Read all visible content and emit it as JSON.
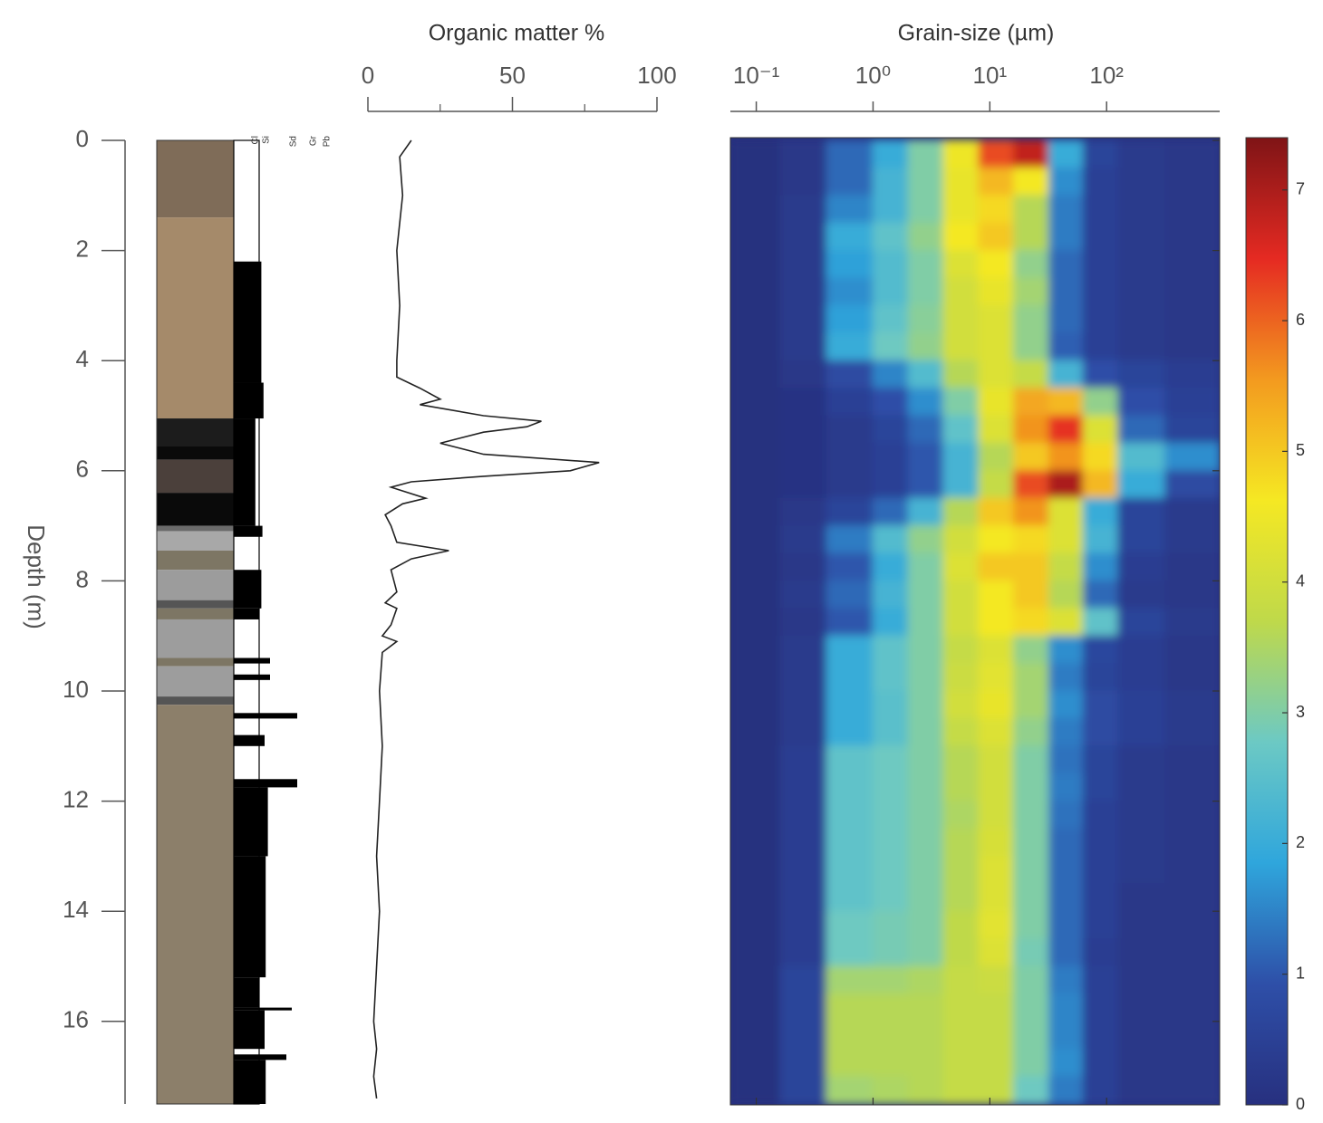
{
  "chart_data": [
    {
      "type": "lithology",
      "ylabel": "Depth (m)",
      "ylim": [
        0,
        17.5
      ],
      "yticks": [
        0,
        2,
        4,
        6,
        8,
        10,
        12,
        14,
        16
      ],
      "units": [
        {
          "top": 0,
          "bottom": 1.4,
          "color": "#7f6c58"
        },
        {
          "top": 1.4,
          "bottom": 5.05,
          "color": "#a58a6a"
        },
        {
          "top": 5.05,
          "bottom": 5.55,
          "color": "#1c1c1c"
        },
        {
          "top": 5.55,
          "bottom": 5.8,
          "color": "#0a0a0a"
        },
        {
          "top": 5.8,
          "bottom": 6.4,
          "color": "#4b403b"
        },
        {
          "top": 6.4,
          "bottom": 7.0,
          "color": "#0a0a0a"
        },
        {
          "top": 7.0,
          "bottom": 7.1,
          "color": "#6b6b6b"
        },
        {
          "top": 7.1,
          "bottom": 7.45,
          "color": "#a8a8a8"
        },
        {
          "top": 7.45,
          "bottom": 7.8,
          "color": "#7d7664"
        },
        {
          "top": 7.8,
          "bottom": 8.35,
          "color": "#9c9c9c"
        },
        {
          "top": 8.35,
          "bottom": 8.5,
          "color": "#555555"
        },
        {
          "top": 8.5,
          "bottom": 8.7,
          "color": "#7d7664"
        },
        {
          "top": 8.7,
          "bottom": 9.4,
          "color": "#9d9d9d"
        },
        {
          "top": 9.4,
          "bottom": 9.55,
          "color": "#7d7664"
        },
        {
          "top": 9.55,
          "bottom": 10.1,
          "color": "#9d9d9d"
        },
        {
          "top": 10.1,
          "bottom": 10.25,
          "color": "#555555"
        },
        {
          "top": 10.25,
          "bottom": 17.5,
          "color": "#8c7f6a"
        }
      ],
      "grain_classes": [
        "Cl",
        "Si",
        "Sd",
        "Gr",
        "Pb"
      ],
      "grain_log": [
        {
          "top": 2.2,
          "bottom": 4.4,
          "size": 1.2
        },
        {
          "top": 4.4,
          "bottom": 5.05,
          "size": 1.4
        },
        {
          "top": 5.05,
          "bottom": 7.0,
          "size": 0.85
        },
        {
          "top": 7.0,
          "bottom": 7.2,
          "size": 1.3
        },
        {
          "top": 7.8,
          "bottom": 8.5,
          "size": 1.2
        },
        {
          "top": 8.5,
          "bottom": 8.7,
          "size": 1.0
        },
        {
          "top": 9.4,
          "bottom": 9.5,
          "size": 2.0
        },
        {
          "top": 9.7,
          "bottom": 9.8,
          "size": 2.0
        },
        {
          "top": 10.4,
          "bottom": 10.5,
          "size": 3.0
        },
        {
          "top": 10.8,
          "bottom": 11.0,
          "size": 1.5
        },
        {
          "top": 11.6,
          "bottom": 11.75,
          "size": 3.0
        },
        {
          "top": 11.75,
          "bottom": 13.0,
          "size": 1.8
        },
        {
          "top": 13.0,
          "bottom": 15.2,
          "size": 1.6
        },
        {
          "top": 15.2,
          "bottom": 15.75,
          "size": 1.0
        },
        {
          "top": 15.75,
          "bottom": 15.8,
          "size": 2.8
        },
        {
          "top": 15.8,
          "bottom": 16.5,
          "size": 1.5
        },
        {
          "top": 16.6,
          "bottom": 16.7,
          "size": 2.6
        },
        {
          "top": 16.7,
          "bottom": 17.5,
          "size": 1.6
        }
      ]
    },
    {
      "type": "line",
      "title": "Organic matter %",
      "xlim": [
        0,
        100
      ],
      "xticks": [
        0,
        50,
        100
      ],
      "xminor": [
        25,
        75
      ],
      "color": "#222222",
      "depth": [
        0,
        0.3,
        1,
        2,
        3,
        4,
        4.3,
        4.5,
        4.7,
        4.8,
        5.0,
        5.1,
        5.2,
        5.3,
        5.5,
        5.7,
        5.85,
        6.0,
        6.1,
        6.2,
        6.3,
        6.5,
        6.6,
        6.8,
        7.0,
        7.3,
        7.45,
        7.6,
        7.8,
        8.2,
        8.4,
        8.5,
        8.8,
        9.0,
        9.1,
        9.3,
        10,
        11,
        12,
        13,
        14,
        15,
        16,
        16.5,
        17,
        17.4
      ],
      "values": [
        15,
        11,
        12,
        10,
        11,
        10,
        10,
        18,
        25,
        18,
        40,
        60,
        55,
        40,
        25,
        40,
        80,
        70,
        40,
        15,
        8,
        20,
        12,
        6,
        8,
        10,
        28,
        15,
        8,
        10,
        6,
        10,
        8,
        5,
        10,
        5,
        4,
        5,
        4,
        3,
        4,
        3,
        2,
        3,
        2,
        3
      ]
    },
    {
      "type": "heatmap",
      "title": "Grain-size (µm)",
      "xlog": true,
      "xlim": [
        0.06,
        930
      ],
      "xticks": [
        {
          "value": 0.1,
          "label": "10⁻¹"
        },
        {
          "value": 1,
          "label": "10⁰"
        },
        {
          "value": 10,
          "label": "10¹"
        },
        {
          "value": 100,
          "label": "10²"
        }
      ],
      "x_bins": [
        0.06,
        0.16,
        0.4,
        1,
        2,
        4,
        8,
        16,
        32,
        63,
        125,
        316,
        930
      ],
      "depth_bins": [
        0,
        0.5,
        1,
        1.5,
        2,
        2.5,
        3,
        3.5,
        4,
        4.5,
        5,
        5.5,
        6,
        6.5,
        7,
        7.5,
        8,
        8.5,
        9,
        9.5,
        10,
        10.5,
        11,
        11.5,
        12,
        12.5,
        13,
        13.5,
        14,
        14.5,
        15,
        15.5,
        16,
        16.5,
        17,
        17.5
      ],
      "clim": [
        0,
        7.4
      ],
      "cticks": [
        0,
        1,
        2,
        3,
        4,
        5,
        6,
        7
      ],
      "colormap": [
        "#27307f",
        "#2e4fa8",
        "#2fa6dc",
        "#6cc9c4",
        "#bfd94a",
        "#f5e823",
        "#f39a1f",
        "#e52a22",
        "#7f1416"
      ],
      "values": [
        [
          0,
          0.2,
          1.2,
          2.0,
          3.0,
          4.5,
          6.2,
          6.8,
          2.0,
          0.6,
          0.3,
          0.2
        ],
        [
          0,
          0.2,
          1.2,
          2.2,
          3.0,
          4.4,
          5.2,
          4.6,
          1.6,
          0.5,
          0.3,
          0.2
        ],
        [
          0,
          0.3,
          1.5,
          2.2,
          3.0,
          4.4,
          4.8,
          3.6,
          1.4,
          0.5,
          0.3,
          0.2
        ],
        [
          0,
          0.3,
          2.0,
          2.6,
          3.2,
          4.6,
          5.0,
          3.6,
          1.4,
          0.5,
          0.3,
          0.2
        ],
        [
          0,
          0.3,
          1.8,
          2.4,
          3.0,
          4.2,
          4.6,
          3.2,
          1.2,
          0.5,
          0.3,
          0.2
        ],
        [
          0,
          0.3,
          1.6,
          2.4,
          3.0,
          4.0,
          4.4,
          3.4,
          1.2,
          0.5,
          0.3,
          0.2
        ],
        [
          0,
          0.3,
          1.8,
          2.6,
          3.1,
          4.0,
          4.2,
          3.2,
          1.2,
          0.5,
          0.3,
          0.2
        ],
        [
          0,
          0.3,
          2.0,
          2.8,
          3.2,
          4.0,
          4.2,
          3.2,
          1.1,
          0.5,
          0.3,
          0.2
        ],
        [
          0,
          0.2,
          0.8,
          1.5,
          2.4,
          3.6,
          4.2,
          3.8,
          2.2,
          0.9,
          0.6,
          0.4
        ],
        [
          0,
          0.1,
          0.5,
          0.9,
          1.6,
          3.0,
          4.4,
          5.4,
          5.2,
          3.2,
          0.9,
          0.5
        ],
        [
          0,
          0.1,
          0.3,
          0.6,
          1.2,
          2.6,
          4.2,
          5.6,
          6.4,
          4.2,
          1.2,
          0.6
        ],
        [
          0,
          0.1,
          0.3,
          0.5,
          1.0,
          2.2,
          3.6,
          5.0,
          5.6,
          4.8,
          2.4,
          1.6
        ],
        [
          0,
          0.1,
          0.3,
          0.5,
          1.0,
          2.2,
          3.8,
          6.2,
          7.0,
          5.2,
          2.0,
          0.8
        ],
        [
          0,
          0.2,
          0.6,
          1.2,
          2.2,
          3.6,
          5.0,
          5.6,
          4.2,
          2.0,
          0.6,
          0.3
        ],
        [
          0,
          0.3,
          1.4,
          2.4,
          3.2,
          4.0,
          4.6,
          4.8,
          4.2,
          2.2,
          0.6,
          0.3
        ],
        [
          0,
          0.2,
          1.0,
          2.0,
          3.0,
          4.2,
          5.0,
          5.0,
          3.8,
          1.6,
          0.4,
          0.2
        ],
        [
          0,
          0.3,
          1.2,
          2.2,
          3.0,
          4.0,
          4.6,
          5.0,
          3.6,
          1.2,
          0.3,
          0.2
        ],
        [
          0,
          0.2,
          1.0,
          2.0,
          3.0,
          4.0,
          4.6,
          4.8,
          4.2,
          2.6,
          0.6,
          0.3
        ],
        [
          0,
          0.3,
          2.0,
          2.6,
          3.0,
          3.8,
          4.2,
          3.2,
          1.6,
          0.7,
          0.4,
          0.2
        ],
        [
          0,
          0.3,
          2.0,
          2.6,
          3.0,
          3.9,
          4.3,
          3.4,
          1.4,
          0.6,
          0.4,
          0.2
        ],
        [
          0,
          0.3,
          2.0,
          2.5,
          3.0,
          4.0,
          4.4,
          3.4,
          1.6,
          0.8,
          0.5,
          0.3
        ],
        [
          0,
          0.3,
          2.0,
          2.5,
          3.0,
          3.8,
          4.2,
          3.2,
          1.4,
          0.8,
          0.5,
          0.3
        ],
        [
          0,
          0.4,
          2.6,
          2.8,
          3.0,
          3.6,
          4.0,
          3.0,
          1.3,
          0.6,
          0.3,
          0.2
        ],
        [
          0,
          0.4,
          2.6,
          2.8,
          3.0,
          3.6,
          4.0,
          3.0,
          1.4,
          0.6,
          0.3,
          0.2
        ],
        [
          0,
          0.4,
          2.6,
          2.8,
          3.0,
          3.5,
          4.0,
          3.0,
          1.3,
          0.5,
          0.3,
          0.2
        ],
        [
          0,
          0.4,
          2.6,
          2.8,
          3.0,
          3.6,
          4.1,
          3.0,
          1.2,
          0.5,
          0.3,
          0.2
        ],
        [
          0,
          0.4,
          2.6,
          2.8,
          3.0,
          3.6,
          4.2,
          3.0,
          1.2,
          0.5,
          0.3,
          0.2
        ],
        [
          0,
          0.4,
          2.6,
          2.8,
          3.0,
          3.6,
          4.2,
          3.0,
          1.2,
          0.5,
          0.2,
          0.2
        ],
        [
          0,
          0.4,
          2.8,
          2.9,
          3.0,
          3.7,
          4.3,
          3.0,
          1.2,
          0.5,
          0.2,
          0.2
        ],
        [
          0,
          0.4,
          2.8,
          2.9,
          3.0,
          3.7,
          4.2,
          2.9,
          1.2,
          0.4,
          0.2,
          0.2
        ],
        [
          0,
          0.6,
          3.4,
          3.4,
          3.5,
          3.8,
          3.9,
          3.0,
          1.4,
          0.5,
          0.2,
          0.2
        ],
        [
          0,
          0.6,
          3.6,
          3.6,
          3.6,
          3.8,
          3.8,
          3.0,
          1.5,
          0.5,
          0.2,
          0.2
        ],
        [
          0,
          0.6,
          3.6,
          3.6,
          3.6,
          3.8,
          3.8,
          3.0,
          1.5,
          0.5,
          0.2,
          0.2
        ],
        [
          0,
          0.6,
          3.6,
          3.6,
          3.6,
          3.8,
          3.8,
          3.0,
          1.6,
          0.5,
          0.2,
          0.2
        ],
        [
          0,
          0.6,
          3.4,
          3.5,
          3.6,
          3.8,
          3.8,
          2.8,
          1.4,
          0.5,
          0.2,
          0.2
        ]
      ]
    }
  ]
}
